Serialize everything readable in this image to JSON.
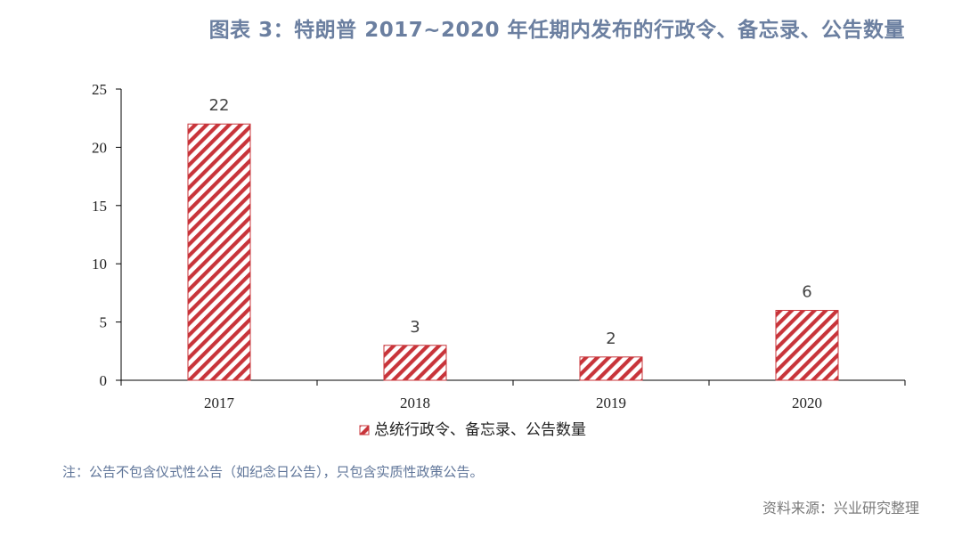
{
  "title": "图表 3：特朗普 2017~2020 年任期内发布的行政令、备忘录、公告数量",
  "note": "注：公告不包含仪式性公告（如纪念日公告），只包含实质性政策公告。",
  "source": "资料来源：兴业研究整理",
  "colors": {
    "bar_stripe": "#c8343a",
    "bar_bg": "#ffffff",
    "axis": "#000000",
    "title": "#6b7fa0"
  },
  "chart_data": {
    "type": "bar",
    "categories": [
      "2017",
      "2018",
      "2019",
      "2020"
    ],
    "series": [
      {
        "name": "总统行政令、备忘录、公告数量",
        "values": [
          22,
          3,
          2,
          6
        ]
      }
    ],
    "data_labels": [
      "22",
      "3",
      "2",
      "6"
    ],
    "ylim": [
      0,
      25
    ],
    "yticks": [
      0,
      5,
      10,
      15,
      20,
      25
    ],
    "ytick_labels": [
      "0",
      "5",
      "10",
      "15",
      "20",
      "25"
    ],
    "xlabel": "",
    "ylabel": "",
    "grid": false,
    "legend_position": "bottom-center"
  }
}
